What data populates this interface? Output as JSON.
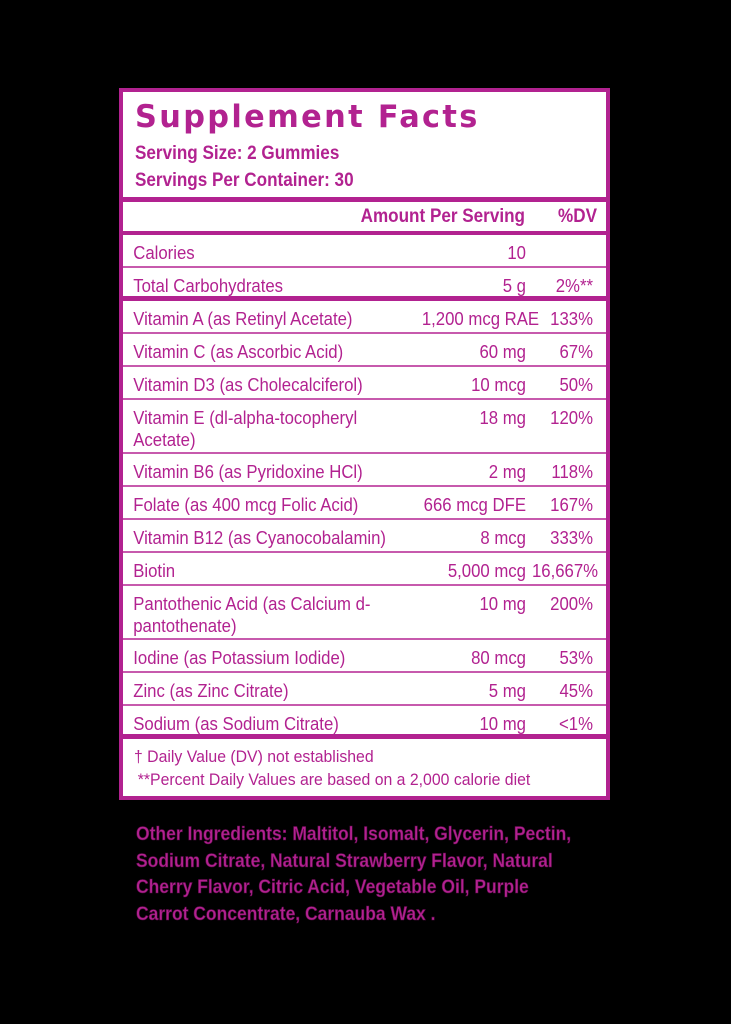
{
  "label": {
    "title": "Supplement Facts",
    "serving_size": "Serving Size: 2 Gummies",
    "servings_per_container": "Servings Per Container: 30",
    "column_headers": {
      "amount": "Amount Per Serving",
      "dv": "%DV"
    },
    "rows": [
      {
        "name": "Calories",
        "amount": "10",
        "dv": ""
      },
      {
        "name": "Total Carbohydrates",
        "amount": "5 g",
        "dv": "2%**"
      },
      {
        "name": "Vitamin A (as Retinyl Acetate)",
        "amount": "1,200 mcg RAE",
        "dv": "133%"
      },
      {
        "name": "Vitamin C (as Ascorbic Acid)",
        "amount": "60 mg",
        "dv": "67%"
      },
      {
        "name": "Vitamin D3 (as Cholecalciferol)",
        "amount": "10 mcg",
        "dv": "50%"
      },
      {
        "name": "Vitamin E (dl-alpha-tocopheryl Acetate)",
        "amount": "18 mg",
        "dv": "120%"
      },
      {
        "name": "Vitamin B6 (as Pyridoxine HCl)",
        "amount": "2 mg",
        "dv": "118%"
      },
      {
        "name": "Folate (as 400 mcg Folic Acid)",
        "amount": "666 mcg DFE",
        "dv": "167%"
      },
      {
        "name": "Vitamin B12 (as Cyanocobalamin)",
        "amount": "8 mcg",
        "dv": "333%"
      },
      {
        "name": "Biotin",
        "amount": "5,000 mcg",
        "dv": "16,667%"
      },
      {
        "name": "Pantothenic Acid (as Calcium d-pantothenate)",
        "amount": "10 mg",
        "dv": "200%"
      },
      {
        "name": "Iodine (as Potassium Iodide)",
        "amount": "80 mcg",
        "dv": "53%"
      },
      {
        "name": "Zinc (as Zinc Citrate)",
        "amount": "5 mg",
        "dv": "45%"
      },
      {
        "name": "Sodium (as Sodium Citrate)",
        "amount": "10 mg",
        "dv": "<1%"
      }
    ],
    "footnotes": [
      "† Daily Value (DV) not established",
      "**Percent Daily Values are based on a 2,000 calorie diet"
    ]
  },
  "other_ingredients": "Other Ingredients: Maltitol, Isomalt, Glycerin, Pectin, Sodium Citrate, Natural Strawberry Flavor, Natural Cherry Flavor, Citric Acid,  Vegetable Oil, Purple Carrot Concentrate, Carnauba Wax .",
  "colors": {
    "accent": "#b22290",
    "background": "#000000",
    "panel": "#ffffff"
  }
}
